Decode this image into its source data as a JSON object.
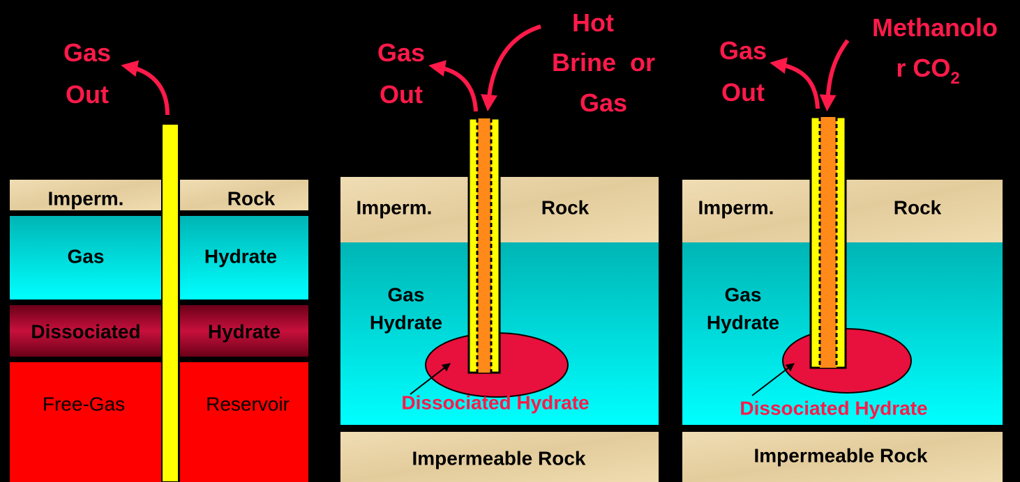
{
  "panels": [
    {
      "outflow": [
        "Gas",
        "Out"
      ],
      "layers": [
        [
          "Imperm.",
          "Rock"
        ],
        [
          "Gas",
          "Hydrate"
        ],
        [
          "Dissociated",
          "Hydrate"
        ],
        [
          "Free-Gas",
          "Reservoir"
        ]
      ]
    },
    {
      "outflow": [
        "Gas",
        "Out"
      ],
      "inflow": [
        "Hot",
        "Brine  or",
        "Gas"
      ],
      "cap": [
        "Imperm.",
        "Rock"
      ],
      "zone": [
        "Gas",
        "Hydrate"
      ],
      "dissociated": "Dissociated Hydrate",
      "base": "Impermeable Rock"
    },
    {
      "outflow": [
        "Gas",
        "Out"
      ],
      "inflow": [
        "Methanolo",
        "r CO"
      ],
      "inflow_subscript": "2",
      "cap": [
        "Imperm.",
        "Rock"
      ],
      "zone": [
        "Gas",
        "Hydrate"
      ],
      "dissociated": "Dissociated Hydrate",
      "base": "Impermeable Rock"
    }
  ]
}
